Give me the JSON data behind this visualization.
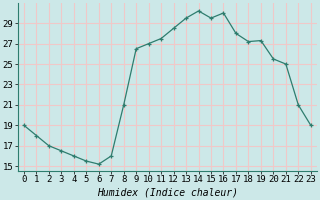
{
  "x": [
    0,
    1,
    2,
    3,
    4,
    5,
    6,
    7,
    8,
    9,
    10,
    11,
    12,
    13,
    14,
    15,
    16,
    17,
    18,
    19,
    20,
    21,
    22,
    23
  ],
  "y": [
    19,
    18,
    17,
    16.5,
    16,
    15.5,
    15.2,
    16,
    21,
    26.5,
    27,
    27.5,
    28.5,
    29.5,
    30.2,
    29.5,
    30,
    28,
    27.2,
    27.3,
    25.5,
    25,
    21,
    19
  ],
  "line_color": "#2e7d6e",
  "marker": "+",
  "marker_size": 3,
  "marker_color": "#2e7d6e",
  "bg_color": "#cce8e8",
  "grid_color": "#f0c8c8",
  "xlabel": "Humidex (Indice chaleur)",
  "xlabel_style": "italic",
  "xlabel_fontsize": 7,
  "tick_fontsize": 6.5,
  "xlim": [
    -0.5,
    23.5
  ],
  "ylim": [
    14.5,
    31
  ],
  "yticks": [
    15,
    17,
    19,
    21,
    23,
    25,
    27,
    29
  ],
  "xticks": [
    0,
    1,
    2,
    3,
    4,
    5,
    6,
    7,
    8,
    9,
    10,
    11,
    12,
    13,
    14,
    15,
    16,
    17,
    18,
    19,
    20,
    21,
    22,
    23
  ]
}
